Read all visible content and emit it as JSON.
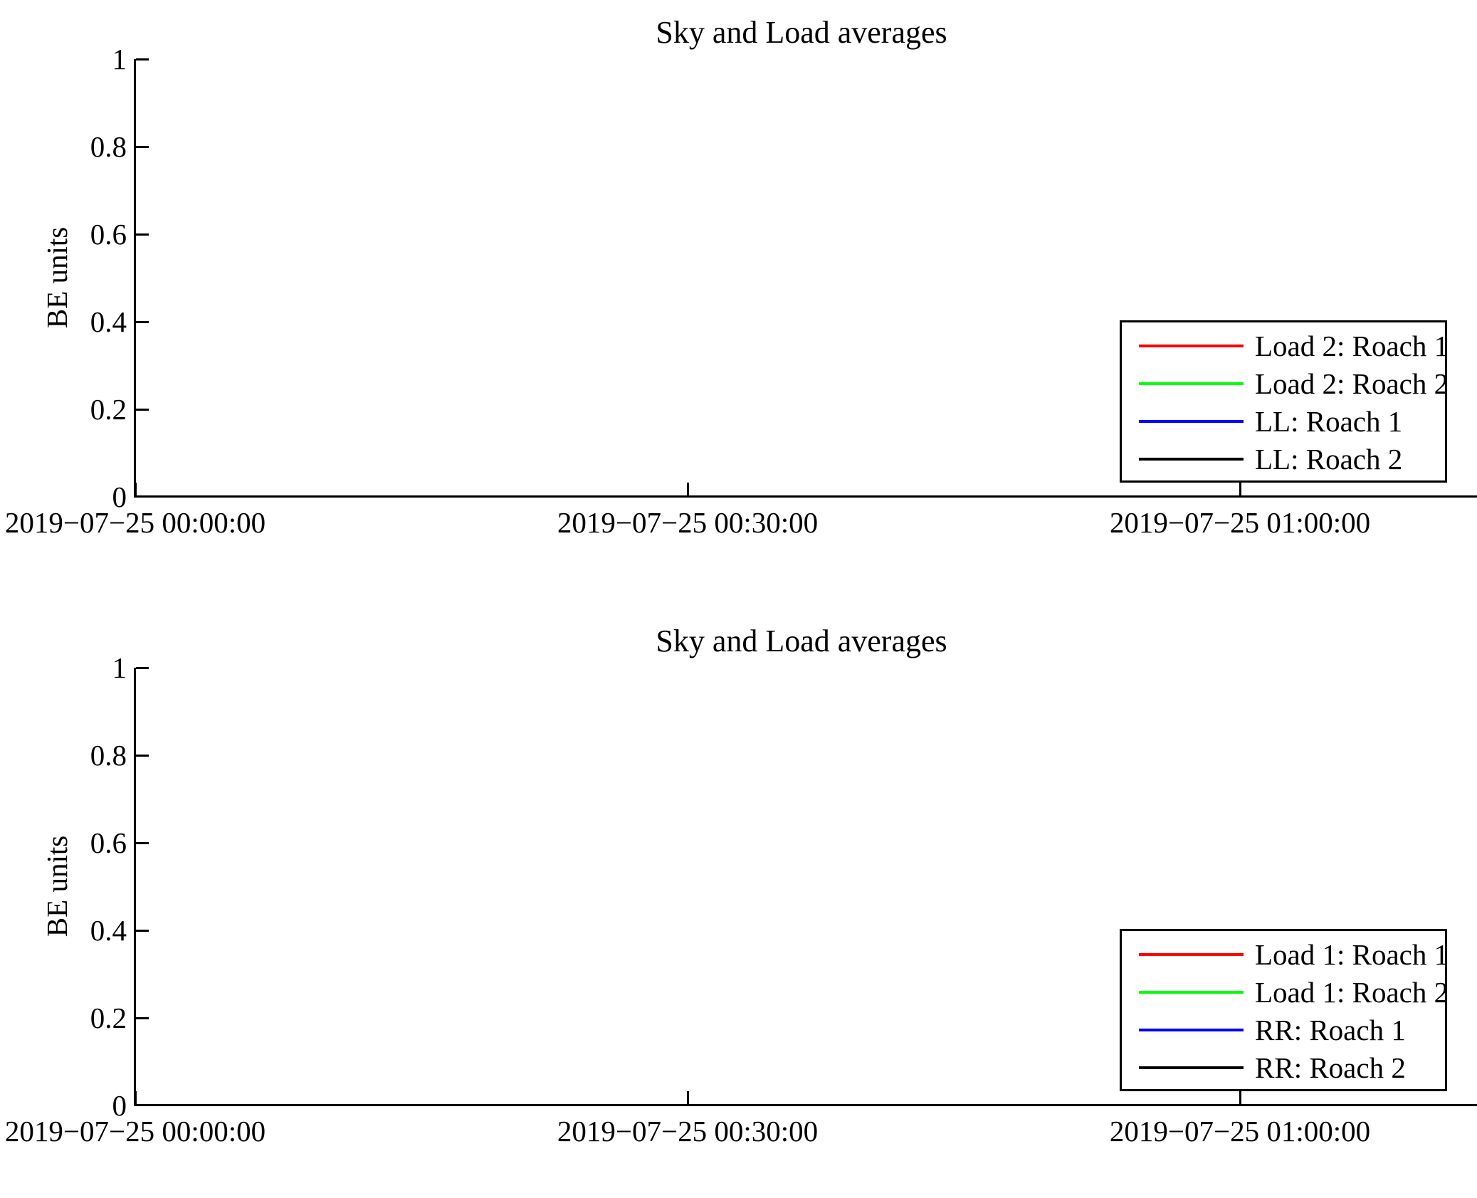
{
  "figure_background": "#ffffff",
  "chart_data": [
    {
      "type": "line",
      "title": "Sky and Load averages",
      "xlabel": "",
      "ylabel": "BE units",
      "ylim": [
        0,
        1
      ],
      "grid": false,
      "legend_position": "right",
      "yticks": [
        "1",
        "0.8",
        "0.6",
        "0.4",
        "0.2",
        "0"
      ],
      "xticks": [
        "2019−07−25 00:00:00",
        "2019−07−25 00:30:00",
        "2019−07−25 01:00:00"
      ],
      "series": [
        {
          "name": "Load 2: Roach 1",
          "color": "#ff0000",
          "values": []
        },
        {
          "name": "Load 2: Roach 2",
          "color": "#00ff00",
          "values": []
        },
        {
          "name": "LL: Roach 1",
          "color": "#0000ff",
          "values": []
        },
        {
          "name": "LL: Roach 2",
          "color": "#000000",
          "values": []
        }
      ]
    },
    {
      "type": "line",
      "title": "Sky and Load averages",
      "xlabel": "",
      "ylabel": "BE units",
      "ylim": [
        0,
        1
      ],
      "grid": false,
      "legend_position": "right",
      "yticks": [
        "1",
        "0.8",
        "0.6",
        "0.4",
        "0.2",
        "0"
      ],
      "xticks": [
        "2019−07−25 00:00:00",
        "2019−07−25 00:30:00",
        "2019−07−25 01:00:00"
      ],
      "series": [
        {
          "name": "Load 1: Roach 1",
          "color": "#ff0000",
          "values": []
        },
        {
          "name": "Load 1: Roach 2",
          "color": "#00ff00",
          "values": []
        },
        {
          "name": "RR: Roach 1",
          "color": "#0000ff",
          "values": []
        },
        {
          "name": "RR: Roach 2",
          "color": "#000000",
          "values": []
        }
      ]
    }
  ]
}
